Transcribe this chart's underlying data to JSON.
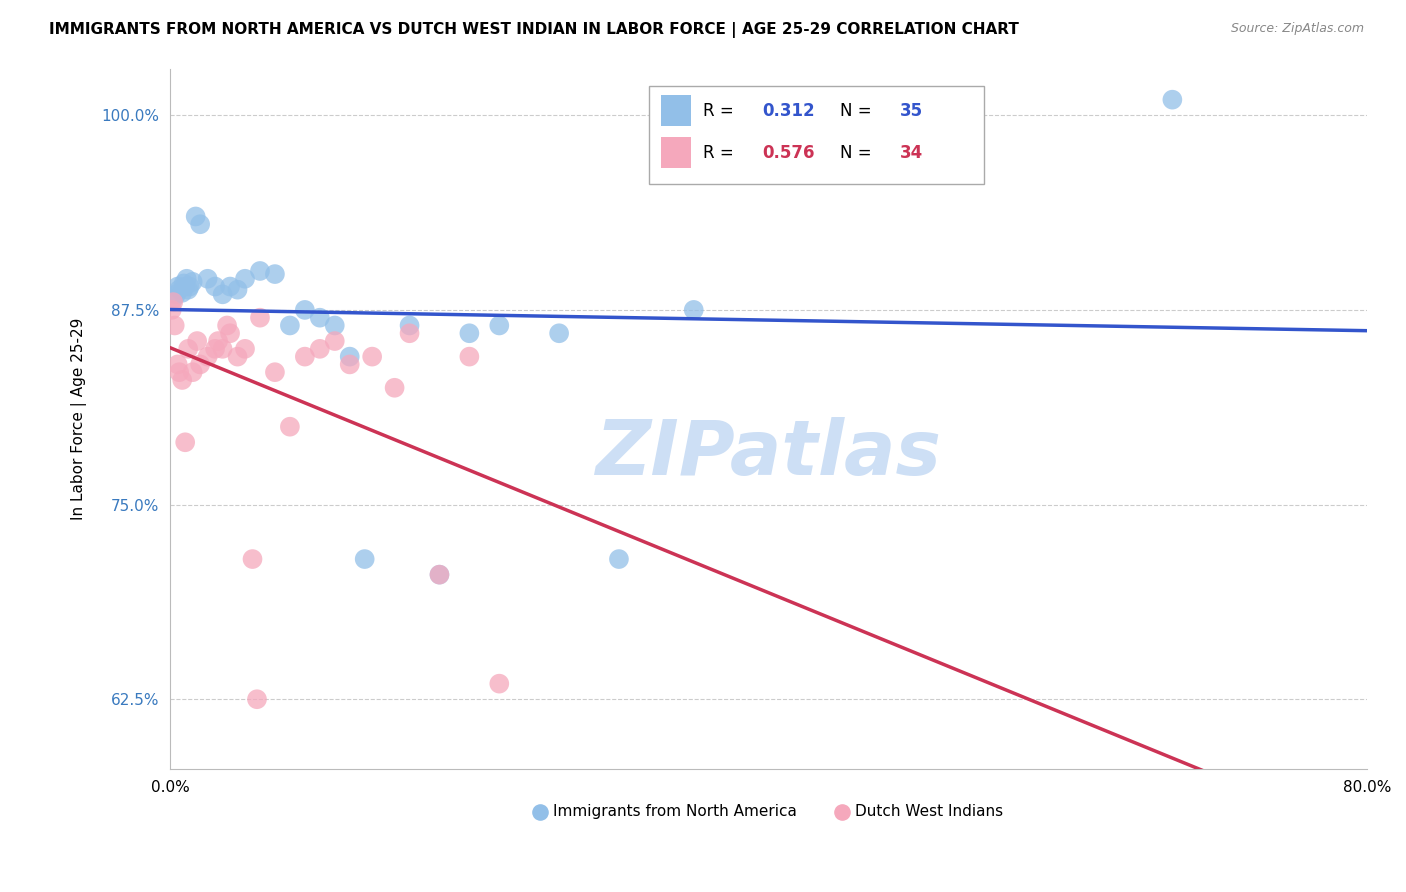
{
  "title": "IMMIGRANTS FROM NORTH AMERICA VS DUTCH WEST INDIAN IN LABOR FORCE | AGE 25-29 CORRELATION CHART",
  "source": "Source: ZipAtlas.com",
  "ylabel": "In Labor Force | Age 25-29",
  "xlim": [
    0.0,
    80.0
  ],
  "ylim": [
    58.0,
    103.0
  ],
  "yticks": [
    62.5,
    75.0,
    87.5,
    100.0
  ],
  "ytick_labels": [
    "62.5%",
    "75.0%",
    "87.5%",
    "100.0%"
  ],
  "xticks": [
    0.0,
    80.0
  ],
  "xtick_labels": [
    "0.0%",
    "80.0%"
  ],
  "blue_R": 0.312,
  "blue_N": 35,
  "pink_R": 0.576,
  "pink_N": 34,
  "blue_color": "#92bfe8",
  "pink_color": "#f5a8bc",
  "blue_line_color": "#3355cc",
  "pink_line_color": "#cc3355",
  "legend_blue_label": "Immigrants from North America",
  "legend_pink_label": "Dutch West Indians",
  "blue_scatter_x": [
    0.2,
    0.4,
    0.5,
    0.6,
    0.8,
    0.9,
    1.0,
    1.1,
    1.2,
    1.3,
    1.5,
    1.7,
    2.0,
    2.5,
    3.0,
    3.5,
    4.0,
    4.5,
    5.0,
    6.0,
    7.0,
    8.0,
    9.0,
    10.0,
    11.0,
    12.0,
    13.0,
    16.0,
    18.0,
    20.0,
    22.0,
    26.0,
    30.0,
    35.0,
    67.0
  ],
  "blue_scatter_y": [
    88.2,
    88.5,
    89.0,
    88.8,
    88.6,
    89.2,
    89.0,
    89.5,
    88.8,
    89.0,
    89.3,
    93.5,
    93.0,
    89.5,
    89.0,
    88.5,
    89.0,
    88.8,
    89.5,
    90.0,
    89.8,
    86.5,
    87.5,
    87.0,
    86.5,
    84.5,
    71.5,
    86.5,
    70.5,
    86.0,
    86.5,
    86.0,
    71.5,
    87.5,
    101.0
  ],
  "pink_scatter_x": [
    0.1,
    0.2,
    0.3,
    0.5,
    0.6,
    0.8,
    1.0,
    1.2,
    1.5,
    1.8,
    2.0,
    2.5,
    3.0,
    3.2,
    3.5,
    4.0,
    4.5,
    5.0,
    5.5,
    6.0,
    7.0,
    8.0,
    9.0,
    10.0,
    11.0,
    12.0,
    13.5,
    15.0,
    16.0,
    18.0,
    20.0,
    22.0,
    5.8,
    3.8
  ],
  "pink_scatter_y": [
    87.5,
    88.0,
    86.5,
    84.0,
    83.5,
    83.0,
    79.0,
    85.0,
    83.5,
    85.5,
    84.0,
    84.5,
    85.0,
    85.5,
    85.0,
    86.0,
    84.5,
    85.0,
    71.5,
    87.0,
    83.5,
    80.0,
    84.5,
    85.0,
    85.5,
    84.0,
    84.5,
    82.5,
    86.0,
    70.5,
    84.5,
    63.5,
    62.5,
    86.5
  ],
  "background_color": "#ffffff",
  "grid_color": "#cccccc",
  "watermark_text": "ZIPatlas",
  "watermark_color": "#cddff5"
}
